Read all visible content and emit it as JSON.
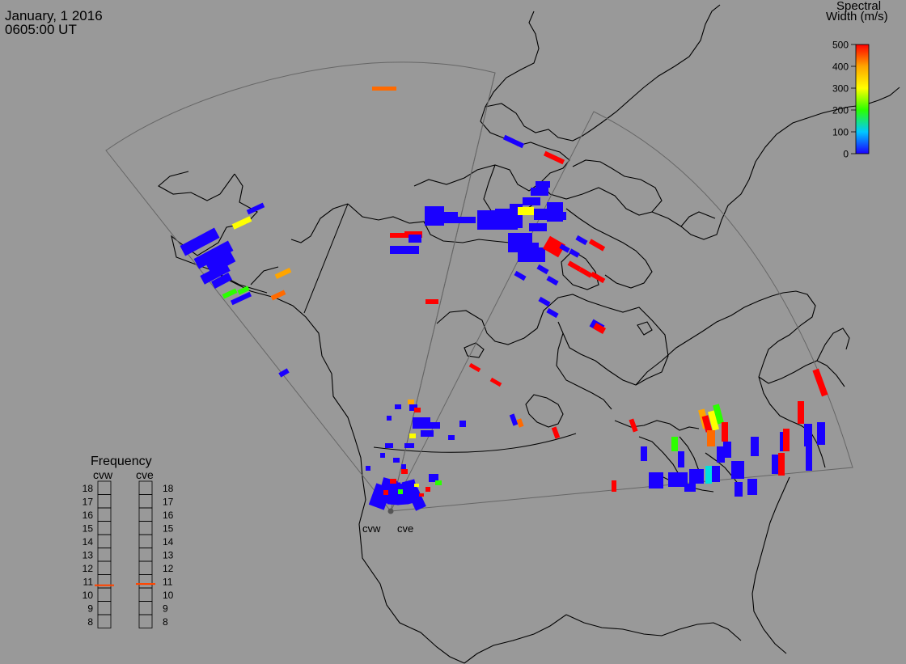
{
  "header": {
    "date": "January, 1 2016",
    "time": "0605:00 UT"
  },
  "colorbar": {
    "title_line1": "Spectral",
    "title_line2": "Width (m/s)",
    "ticks": [
      "500",
      "400",
      "300",
      "200",
      "100",
      "0"
    ],
    "min": 0,
    "max": 500,
    "colors": [
      "#1a00ff",
      "#00c8ff",
      "#2bff00",
      "#ffff00",
      "#ffa500",
      "#ff0000"
    ]
  },
  "frequency_panel": {
    "title": "Frequency",
    "radars": [
      {
        "name": "cvw",
        "frequency_mhz": 10.7
      },
      {
        "name": "cve",
        "frequency_mhz": 10.8
      }
    ],
    "scale": [
      "18",
      "17",
      "16",
      "15",
      "14",
      "13",
      "12",
      "11",
      "10",
      "9",
      "8"
    ]
  },
  "radar_sites": [
    {
      "label": "cvw"
    },
    {
      "label": "cve"
    }
  ],
  "colors": {
    "background": "#999999",
    "coastline": "#000000",
    "fov_outline": "#666666",
    "marker": "#ff4500"
  }
}
